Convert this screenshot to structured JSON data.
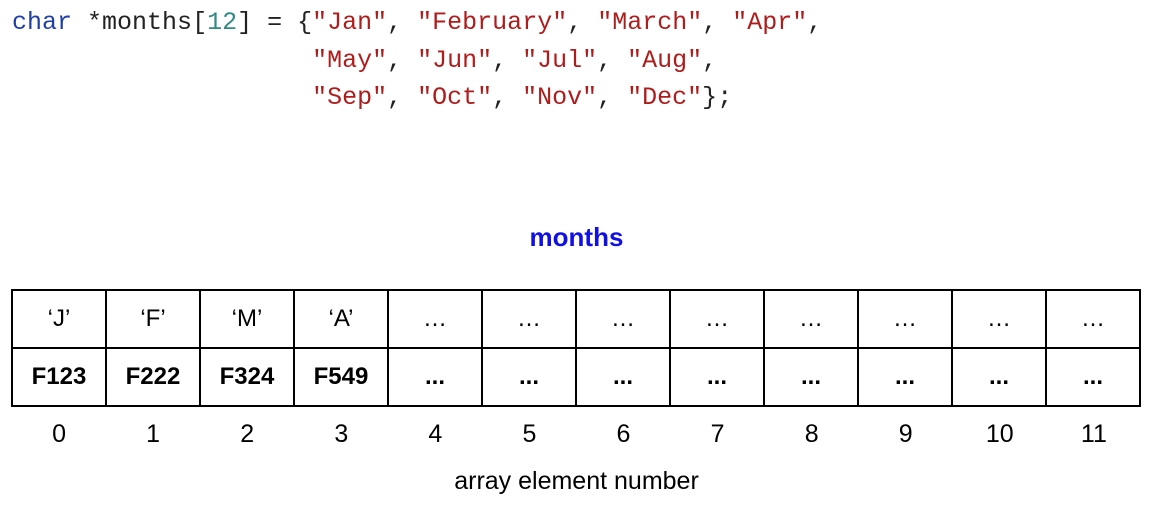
{
  "code": {
    "keyword": "char",
    "pointer": "*",
    "identifier": "months",
    "bracket_open": "[",
    "size": "12",
    "bracket_close": "]",
    "assign": " = ",
    "brace_open": "{",
    "brace_close": "}",
    "semicolon": ";",
    "strings": [
      "\"Jan\"",
      "\"February\"",
      "\"March\"",
      "\"Apr\"",
      "\"May\"",
      "\"Jun\"",
      "\"Jul\"",
      "\"Aug\"",
      "\"Sep\"",
      "\"Oct\"",
      "\"Nov\"",
      "\"Dec\""
    ]
  },
  "diagram": {
    "title": "months",
    "row1": [
      "‘J’",
      "‘F’",
      "‘M’",
      "‘A’",
      "…",
      "…",
      "…",
      "…",
      "…",
      "…",
      "…",
      "…"
    ],
    "row2": [
      "F123",
      "F222",
      "F324",
      "F549",
      "...",
      "...",
      "...",
      "...",
      "...",
      "...",
      "...",
      "..."
    ],
    "indices": [
      "0",
      "1",
      "2",
      "3",
      "4",
      "5",
      "6",
      "7",
      "8",
      "9",
      "10",
      "11"
    ],
    "xlabel": "array element number"
  }
}
